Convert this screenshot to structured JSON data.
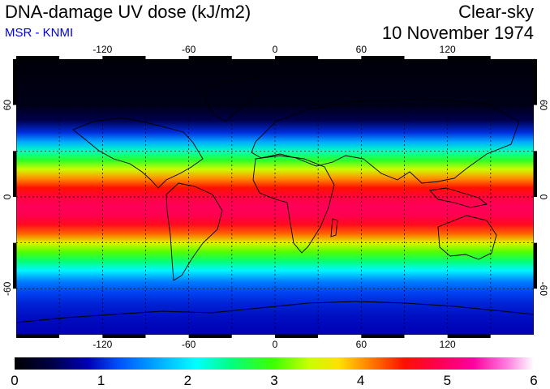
{
  "header": {
    "title": "DNA-damage UV dose (kJ/m2)",
    "subtitle": "MSR - KNMI",
    "subtitle_color": "#0000e0",
    "mode": "Clear-sky",
    "date": "10 November 1974"
  },
  "map": {
    "projection": "equirectangular",
    "lon_range": [
      -180,
      180
    ],
    "lat_range": [
      -90,
      90
    ],
    "lon_ticks": [
      -120,
      -60,
      0,
      60,
      120
    ],
    "lon_tick_labels": [
      "-120",
      "-60",
      "0",
      "60",
      "120"
    ],
    "lat_ticks": [
      60,
      0,
      -60
    ],
    "lat_tick_labels": [
      "60",
      "0",
      "-60"
    ],
    "graticule_step_deg": 30,
    "coastlines": true
  },
  "colorbar": {
    "min": 0,
    "max": 6,
    "tick_labels": [
      "0",
      "1",
      "2",
      "3",
      "4",
      "5",
      "6"
    ],
    "stops": [
      {
        "v": 0.0,
        "c": "#000000"
      },
      {
        "v": 0.4,
        "c": "#000040"
      },
      {
        "v": 0.85,
        "c": "#0000b4"
      },
      {
        "v": 1.2,
        "c": "#0050ff"
      },
      {
        "v": 1.7,
        "c": "#00b4ff"
      },
      {
        "v": 2.1,
        "c": "#00ffff"
      },
      {
        "v": 2.5,
        "c": "#00ff80"
      },
      {
        "v": 3.0,
        "c": "#40ff00"
      },
      {
        "v": 3.4,
        "c": "#c8ff00"
      },
      {
        "v": 3.75,
        "c": "#ffe000"
      },
      {
        "v": 4.1,
        "c": "#ff8000"
      },
      {
        "v": 4.5,
        "c": "#ff1000"
      },
      {
        "v": 4.9,
        "c": "#ff0050"
      },
      {
        "v": 5.3,
        "c": "#ff00a0"
      },
      {
        "v": 5.7,
        "c": "#ff80e0"
      },
      {
        "v": 6.0,
        "c": "#ffffff"
      }
    ]
  },
  "field_profile": {
    "lat": [
      -90,
      -80,
      -70,
      -62,
      -55,
      -48,
      -42,
      -36,
      -30,
      -24,
      -18,
      -12,
      -6,
      0,
      6,
      12,
      18,
      24,
      30,
      36,
      42,
      50,
      60,
      90
    ],
    "dose": [
      0.85,
      0.9,
      1.0,
      1.15,
      1.45,
      2.05,
      2.55,
      3.05,
      3.55,
      4.2,
      4.65,
      4.9,
      4.95,
      4.8,
      4.5,
      4.05,
      3.45,
      2.85,
      2.3,
      1.65,
      1.05,
      0.45,
      0.15,
      0.05
    ]
  }
}
